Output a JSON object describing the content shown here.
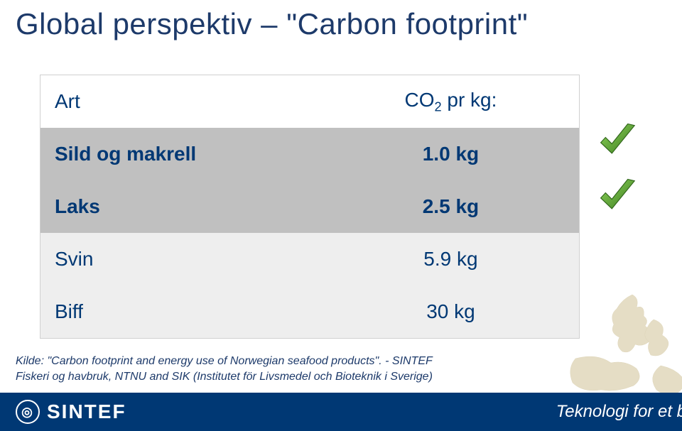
{
  "title": "Global perspektiv – \"Carbon footprint\"",
  "table": {
    "header": {
      "col1": "Art",
      "col2_html": "CO<sub class=\"sub\">2</sub> pr kg:"
    },
    "rows": [
      {
        "label": "Sild og makrell",
        "value": "1.0 kg",
        "bg": "#c0c0c0",
        "bold": true,
        "check": true
      },
      {
        "label": "Laks",
        "value": "2.5 kg",
        "bg": "#c0c0c0",
        "bold": true,
        "check": true
      },
      {
        "label": "Svin",
        "value": "5.9 kg",
        "bg": "#eeeeee",
        "bold": false,
        "check": false
      },
      {
        "label": "Biff",
        "value": "30 kg",
        "bg": "#eeeeee",
        "bold": false,
        "check": false
      }
    ],
    "text_color": "#003874",
    "border_color": "#d0d0d0"
  },
  "checkmark": {
    "stroke": "#4a8a2c",
    "fill_start": "#8fd65b",
    "fill_end": "#3b7a1f"
  },
  "source": {
    "line1": "Kilde: \"Carbon footprint and energy use of Norwegian seafood products\". - SINTEF",
    "line2": "Fiskeri og havbruk, NTNU and SIK (Institutet för Livsmedel och Bioteknik i Sverige)"
  },
  "footer": {
    "logo_text": "SINTEF",
    "tagline": "Teknologi for et b",
    "bg": "#003874",
    "fg": "#ffffff"
  }
}
